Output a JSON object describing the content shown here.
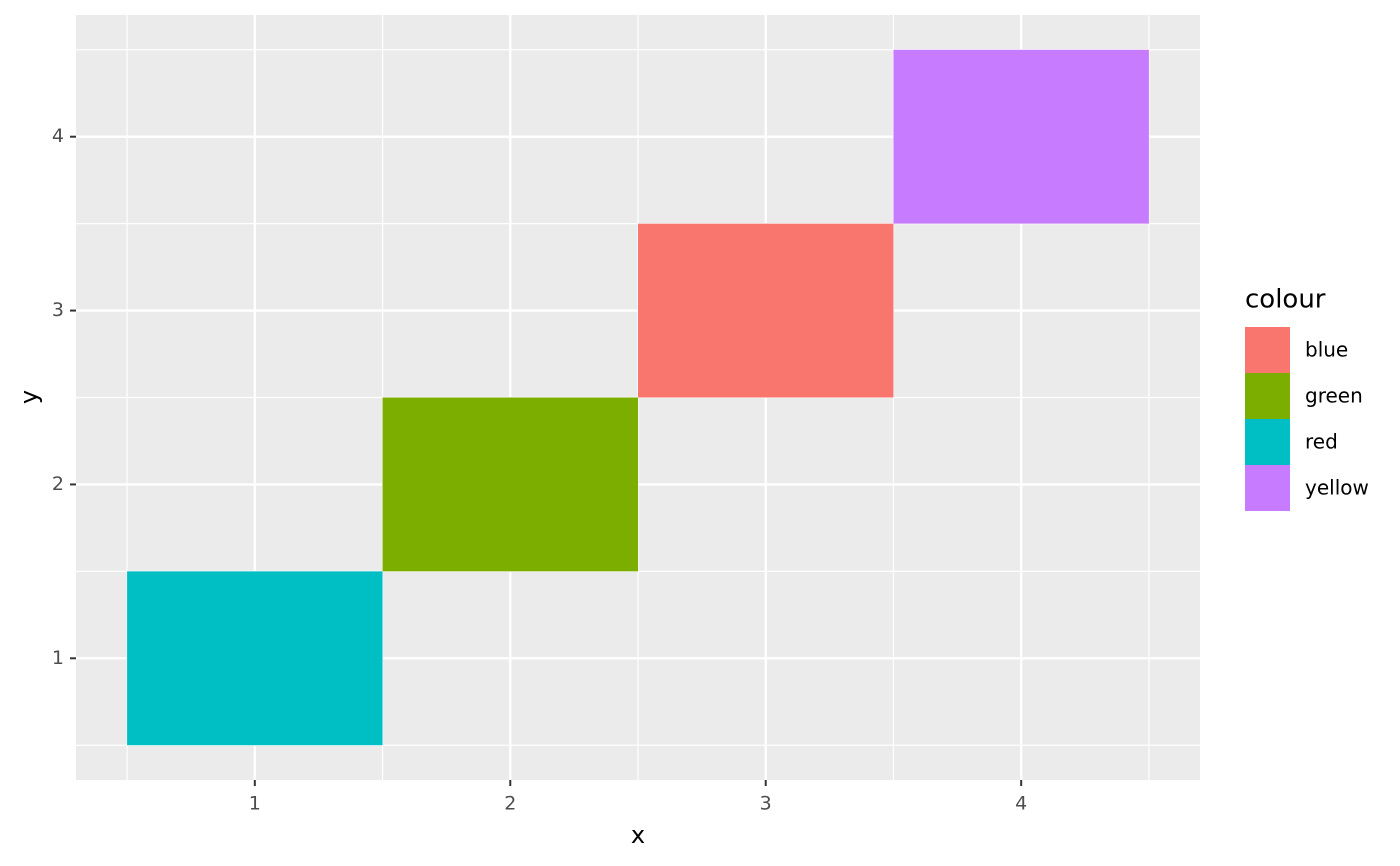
{
  "chart_data": {
    "type": "tile",
    "x_label": "x",
    "y_label": "y",
    "legend_title": "colour",
    "tile_size": 1,
    "series": [
      {
        "name": "blue",
        "color": "#F8766D",
        "x": [
          3
        ],
        "values": [
          3
        ]
      },
      {
        "name": "green",
        "color": "#7CAE00",
        "x": [
          2
        ],
        "values": [
          2
        ]
      },
      {
        "name": "red",
        "color": "#00BFC4",
        "x": [
          1
        ],
        "values": [
          1
        ]
      },
      {
        "name": "yellow",
        "color": "#C77CFF",
        "x": [
          4
        ],
        "values": [
          4
        ]
      }
    ],
    "xlim": [
      0.3,
      4.7
    ],
    "ylim": [
      0.3,
      4.7
    ],
    "xticks": [
      1,
      2,
      3,
      4
    ],
    "yticks": [
      1,
      2,
      3,
      4
    ],
    "minor_breaks": [
      0.5,
      1.5,
      2.5,
      3.5,
      4.5
    ],
    "grid": true,
    "legend": "right"
  }
}
